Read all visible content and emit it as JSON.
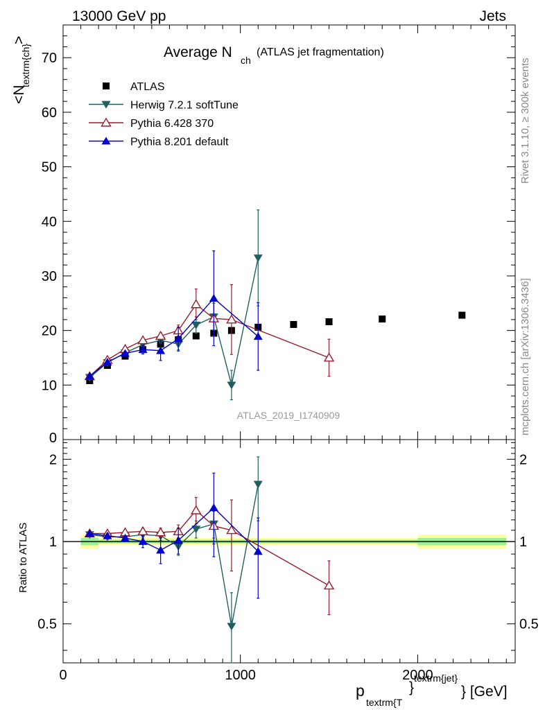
{
  "header": {
    "left": "13000 GeV pp",
    "right": "Jets"
  },
  "title_main": "Average N",
  "title_sub": "ch",
  "title_note": "(ATLAS jet fragmentation)",
  "side_label_top": "Rivet 3.1.10, ≥ 300k events",
  "side_label_bottom": "mcplots.cern.ch [arXiv:1306.3436]",
  "watermark": "ATLAS_2019_I1740909",
  "colors": {
    "atlas": "#000000",
    "herwig": "#1f5f5f",
    "pythia6": "#9b1b2b",
    "pythia8": "#0000cc",
    "band_inner": "#99ee99",
    "band_outer": "#ffff99"
  },
  "chart_data": [
    {
      "type": "scatter",
      "panel": "main",
      "ylabel_main": "<N",
      "ylabel_sub": "textrm{ch}",
      "ylabel_end": ">",
      "xlim": [
        0,
        2550
      ],
      "ylim": [
        0,
        76
      ],
      "xticks": [
        0,
        1000,
        2000
      ],
      "yticks": [
        10,
        20,
        30,
        40,
        50,
        60,
        70
      ],
      "ytick_labels": [
        "10",
        "20",
        "30",
        "40",
        "50",
        "60",
        "70"
      ],
      "ytick_cut": "0",
      "legend_position": "top-left",
      "series": [
        {
          "name": "ATLAS",
          "style": "square",
          "points": [
            {
              "x": 150,
              "y": 10.8,
              "lo": 10.3,
              "hi": 11.3
            },
            {
              "x": 250,
              "y": 13.6,
              "lo": 13.1,
              "hi": 14.1
            },
            {
              "x": 350,
              "y": 15.3,
              "lo": 14.8,
              "hi": 15.8
            },
            {
              "x": 450,
              "y": 16.5,
              "lo": 16.0,
              "hi": 17.0
            },
            {
              "x": 550,
              "y": 17.5,
              "lo": 17.0,
              "hi": 18.0
            },
            {
              "x": 650,
              "y": 18.3,
              "lo": 17.8,
              "hi": 18.8
            },
            {
              "x": 750,
              "y": 19.0,
              "lo": 18.5,
              "hi": 19.5
            },
            {
              "x": 850,
              "y": 19.5,
              "lo": 19.0,
              "hi": 20.0
            },
            {
              "x": 950,
              "y": 20.0,
              "lo": 19.5,
              "hi": 20.5
            },
            {
              "x": 1100,
              "y": 20.6,
              "lo": 20.1,
              "hi": 21.1
            },
            {
              "x": 1300,
              "y": 21.1,
              "lo": 20.6,
              "hi": 21.6
            },
            {
              "x": 1500,
              "y": 21.6,
              "lo": 21.1,
              "hi": 22.1
            },
            {
              "x": 1800,
              "y": 22.1,
              "lo": 21.6,
              "hi": 22.6
            },
            {
              "x": 2250,
              "y": 22.8,
              "lo": 22.3,
              "hi": 23.3
            }
          ]
        },
        {
          "name": "Herwig 7.2.1 softTune",
          "style": "triangle-down",
          "points": [
            {
              "x": 150,
              "y": 11.4,
              "lo": 11.1,
              "hi": 11.7
            },
            {
              "x": 250,
              "y": 14.1,
              "lo": 13.8,
              "hi": 14.4
            },
            {
              "x": 350,
              "y": 15.9,
              "lo": 15.5,
              "hi": 16.3
            },
            {
              "x": 450,
              "y": 17.4,
              "lo": 17.0,
              "hi": 17.8
            },
            {
              "x": 550,
              "y": 18.2,
              "lo": 17.6,
              "hi": 18.8
            },
            {
              "x": 650,
              "y": 17.5,
              "lo": 16.2,
              "hi": 18.8
            },
            {
              "x": 750,
              "y": 21.0,
              "lo": 19.5,
              "hi": 22.5
            },
            {
              "x": 850,
              "y": 22.5,
              "lo": 20.0,
              "hi": 25.0
            },
            {
              "x": 950,
              "y": 10.0,
              "lo": 7.3,
              "hi": 12.7
            },
            {
              "x": 1100,
              "y": 33.3,
              "lo": 24.5,
              "hi": 42.1
            }
          ]
        },
        {
          "name": "Pythia 6.428 370",
          "style": "triangle-up-open",
          "points": [
            {
              "x": 150,
              "y": 11.6,
              "lo": 11.3,
              "hi": 11.9
            },
            {
              "x": 250,
              "y": 14.6,
              "lo": 14.3,
              "hi": 14.9
            },
            {
              "x": 350,
              "y": 16.6,
              "lo": 16.3,
              "hi": 16.9
            },
            {
              "x": 450,
              "y": 18.2,
              "lo": 17.8,
              "hi": 18.6
            },
            {
              "x": 550,
              "y": 19.0,
              "lo": 18.4,
              "hi": 19.6
            },
            {
              "x": 650,
              "y": 20.0,
              "lo": 19.0,
              "hi": 21.0
            },
            {
              "x": 750,
              "y": 24.8,
              "lo": 22.0,
              "hi": 27.6
            },
            {
              "x": 850,
              "y": 22.2,
              "lo": 19.0,
              "hi": 25.4
            },
            {
              "x": 950,
              "y": 22.0,
              "lo": 15.6,
              "hi": 28.4
            },
            {
              "x": 1500,
              "y": 15.0,
              "lo": 11.6,
              "hi": 18.4
            }
          ]
        },
        {
          "name": "Pythia 8.201 default",
          "style": "triangle-up",
          "points": [
            {
              "x": 150,
              "y": 11.6,
              "lo": 11.3,
              "hi": 11.9
            },
            {
              "x": 250,
              "y": 14.2,
              "lo": 13.9,
              "hi": 14.5
            },
            {
              "x": 350,
              "y": 15.8,
              "lo": 15.4,
              "hi": 16.2
            },
            {
              "x": 450,
              "y": 16.5,
              "lo": 15.7,
              "hi": 17.3
            },
            {
              "x": 550,
              "y": 16.3,
              "lo": 14.5,
              "hi": 18.1
            },
            {
              "x": 650,
              "y": 18.5,
              "lo": 16.4,
              "hi": 20.6
            },
            {
              "x": 850,
              "y": 25.9,
              "lo": 17.2,
              "hi": 34.6
            },
            {
              "x": 1100,
              "y": 18.9,
              "lo": 12.7,
              "hi": 25.1
            }
          ]
        }
      ]
    },
    {
      "type": "scatter",
      "panel": "ratio",
      "ylabel": "Ratio to ATLAS",
      "xlabel_main": "p",
      "xlabel_sub": "textrm{T",
      "xlabel_braces": "}",
      "xlabel_sup": "textrm{jet}",
      "xlabel_end": "} [GeV]",
      "xlim": [
        0,
        2550
      ],
      "ylim": [
        0.36,
        2.36
      ],
      "log_y": true,
      "xticks": [
        0,
        1000,
        2000
      ],
      "xtick_labels": [
        "0",
        "1000",
        "2000"
      ],
      "yticks": [
        0.5,
        1,
        2
      ],
      "ytick_labels": [
        "0.5",
        "1",
        "2"
      ],
      "band": [
        {
          "x0": 100,
          "x1": 200,
          "inner": 0.03,
          "outer": 0.06
        },
        {
          "x0": 200,
          "x1": 2000,
          "inner": 0.015,
          "outer": 0.03
        },
        {
          "x0": 2000,
          "x1": 2500,
          "inner": 0.03,
          "outer": 0.06
        }
      ],
      "series": [
        {
          "name": "Herwig 7.2.1 softTune",
          "style": "triangle-down",
          "points": [
            {
              "x": 150,
              "y": 1.06,
              "lo": 1.04,
              "hi": 1.08
            },
            {
              "x": 250,
              "y": 1.04,
              "lo": 1.02,
              "hi": 1.06
            },
            {
              "x": 350,
              "y": 1.04,
              "lo": 1.01,
              "hi": 1.07
            },
            {
              "x": 450,
              "y": 1.06,
              "lo": 1.03,
              "hi": 1.09
            },
            {
              "x": 550,
              "y": 1.05,
              "lo": 1.01,
              "hi": 1.09
            },
            {
              "x": 650,
              "y": 0.96,
              "lo": 0.89,
              "hi": 1.03
            },
            {
              "x": 750,
              "y": 1.11,
              "lo": 1.03,
              "hi": 1.19
            },
            {
              "x": 850,
              "y": 1.16,
              "lo": 1.03,
              "hi": 1.29
            },
            {
              "x": 950,
              "y": 0.49,
              "lo": 0.36,
              "hi": 0.65
            },
            {
              "x": 1100,
              "y": 1.62,
              "lo": 1.19,
              "hi": 2.04
            }
          ]
        },
        {
          "name": "Pythia 6.428 370",
          "style": "triangle-up-open",
          "points": [
            {
              "x": 150,
              "y": 1.07,
              "lo": 1.05,
              "hi": 1.09
            },
            {
              "x": 250,
              "y": 1.07,
              "lo": 1.05,
              "hi": 1.09
            },
            {
              "x": 350,
              "y": 1.08,
              "lo": 1.06,
              "hi": 1.1
            },
            {
              "x": 450,
              "y": 1.09,
              "lo": 1.06,
              "hi": 1.12
            },
            {
              "x": 550,
              "y": 1.08,
              "lo": 1.04,
              "hi": 1.12
            },
            {
              "x": 650,
              "y": 1.09,
              "lo": 1.03,
              "hi": 1.15
            },
            {
              "x": 750,
              "y": 1.3,
              "lo": 1.16,
              "hi": 1.45
            },
            {
              "x": 850,
              "y": 1.14,
              "lo": 0.98,
              "hi": 1.3
            },
            {
              "x": 950,
              "y": 1.1,
              "lo": 0.78,
              "hi": 1.42
            },
            {
              "x": 1500,
              "y": 0.69,
              "lo": 0.54,
              "hi": 0.85
            }
          ]
        },
        {
          "name": "Pythia 8.201 default",
          "style": "triangle-up",
          "points": [
            {
              "x": 150,
              "y": 1.07,
              "lo": 1.05,
              "hi": 1.09
            },
            {
              "x": 250,
              "y": 1.05,
              "lo": 1.03,
              "hi": 1.07
            },
            {
              "x": 350,
              "y": 1.03,
              "lo": 1.01,
              "hi": 1.05
            },
            {
              "x": 450,
              "y": 1.0,
              "lo": 0.95,
              "hi": 1.05
            },
            {
              "x": 550,
              "y": 0.93,
              "lo": 0.83,
              "hi": 1.03
            },
            {
              "x": 650,
              "y": 1.01,
              "lo": 0.9,
              "hi": 1.12
            },
            {
              "x": 850,
              "y": 1.33,
              "lo": 0.88,
              "hi": 1.78
            },
            {
              "x": 1100,
              "y": 0.92,
              "lo": 0.62,
              "hi": 1.22
            }
          ]
        }
      ]
    }
  ]
}
